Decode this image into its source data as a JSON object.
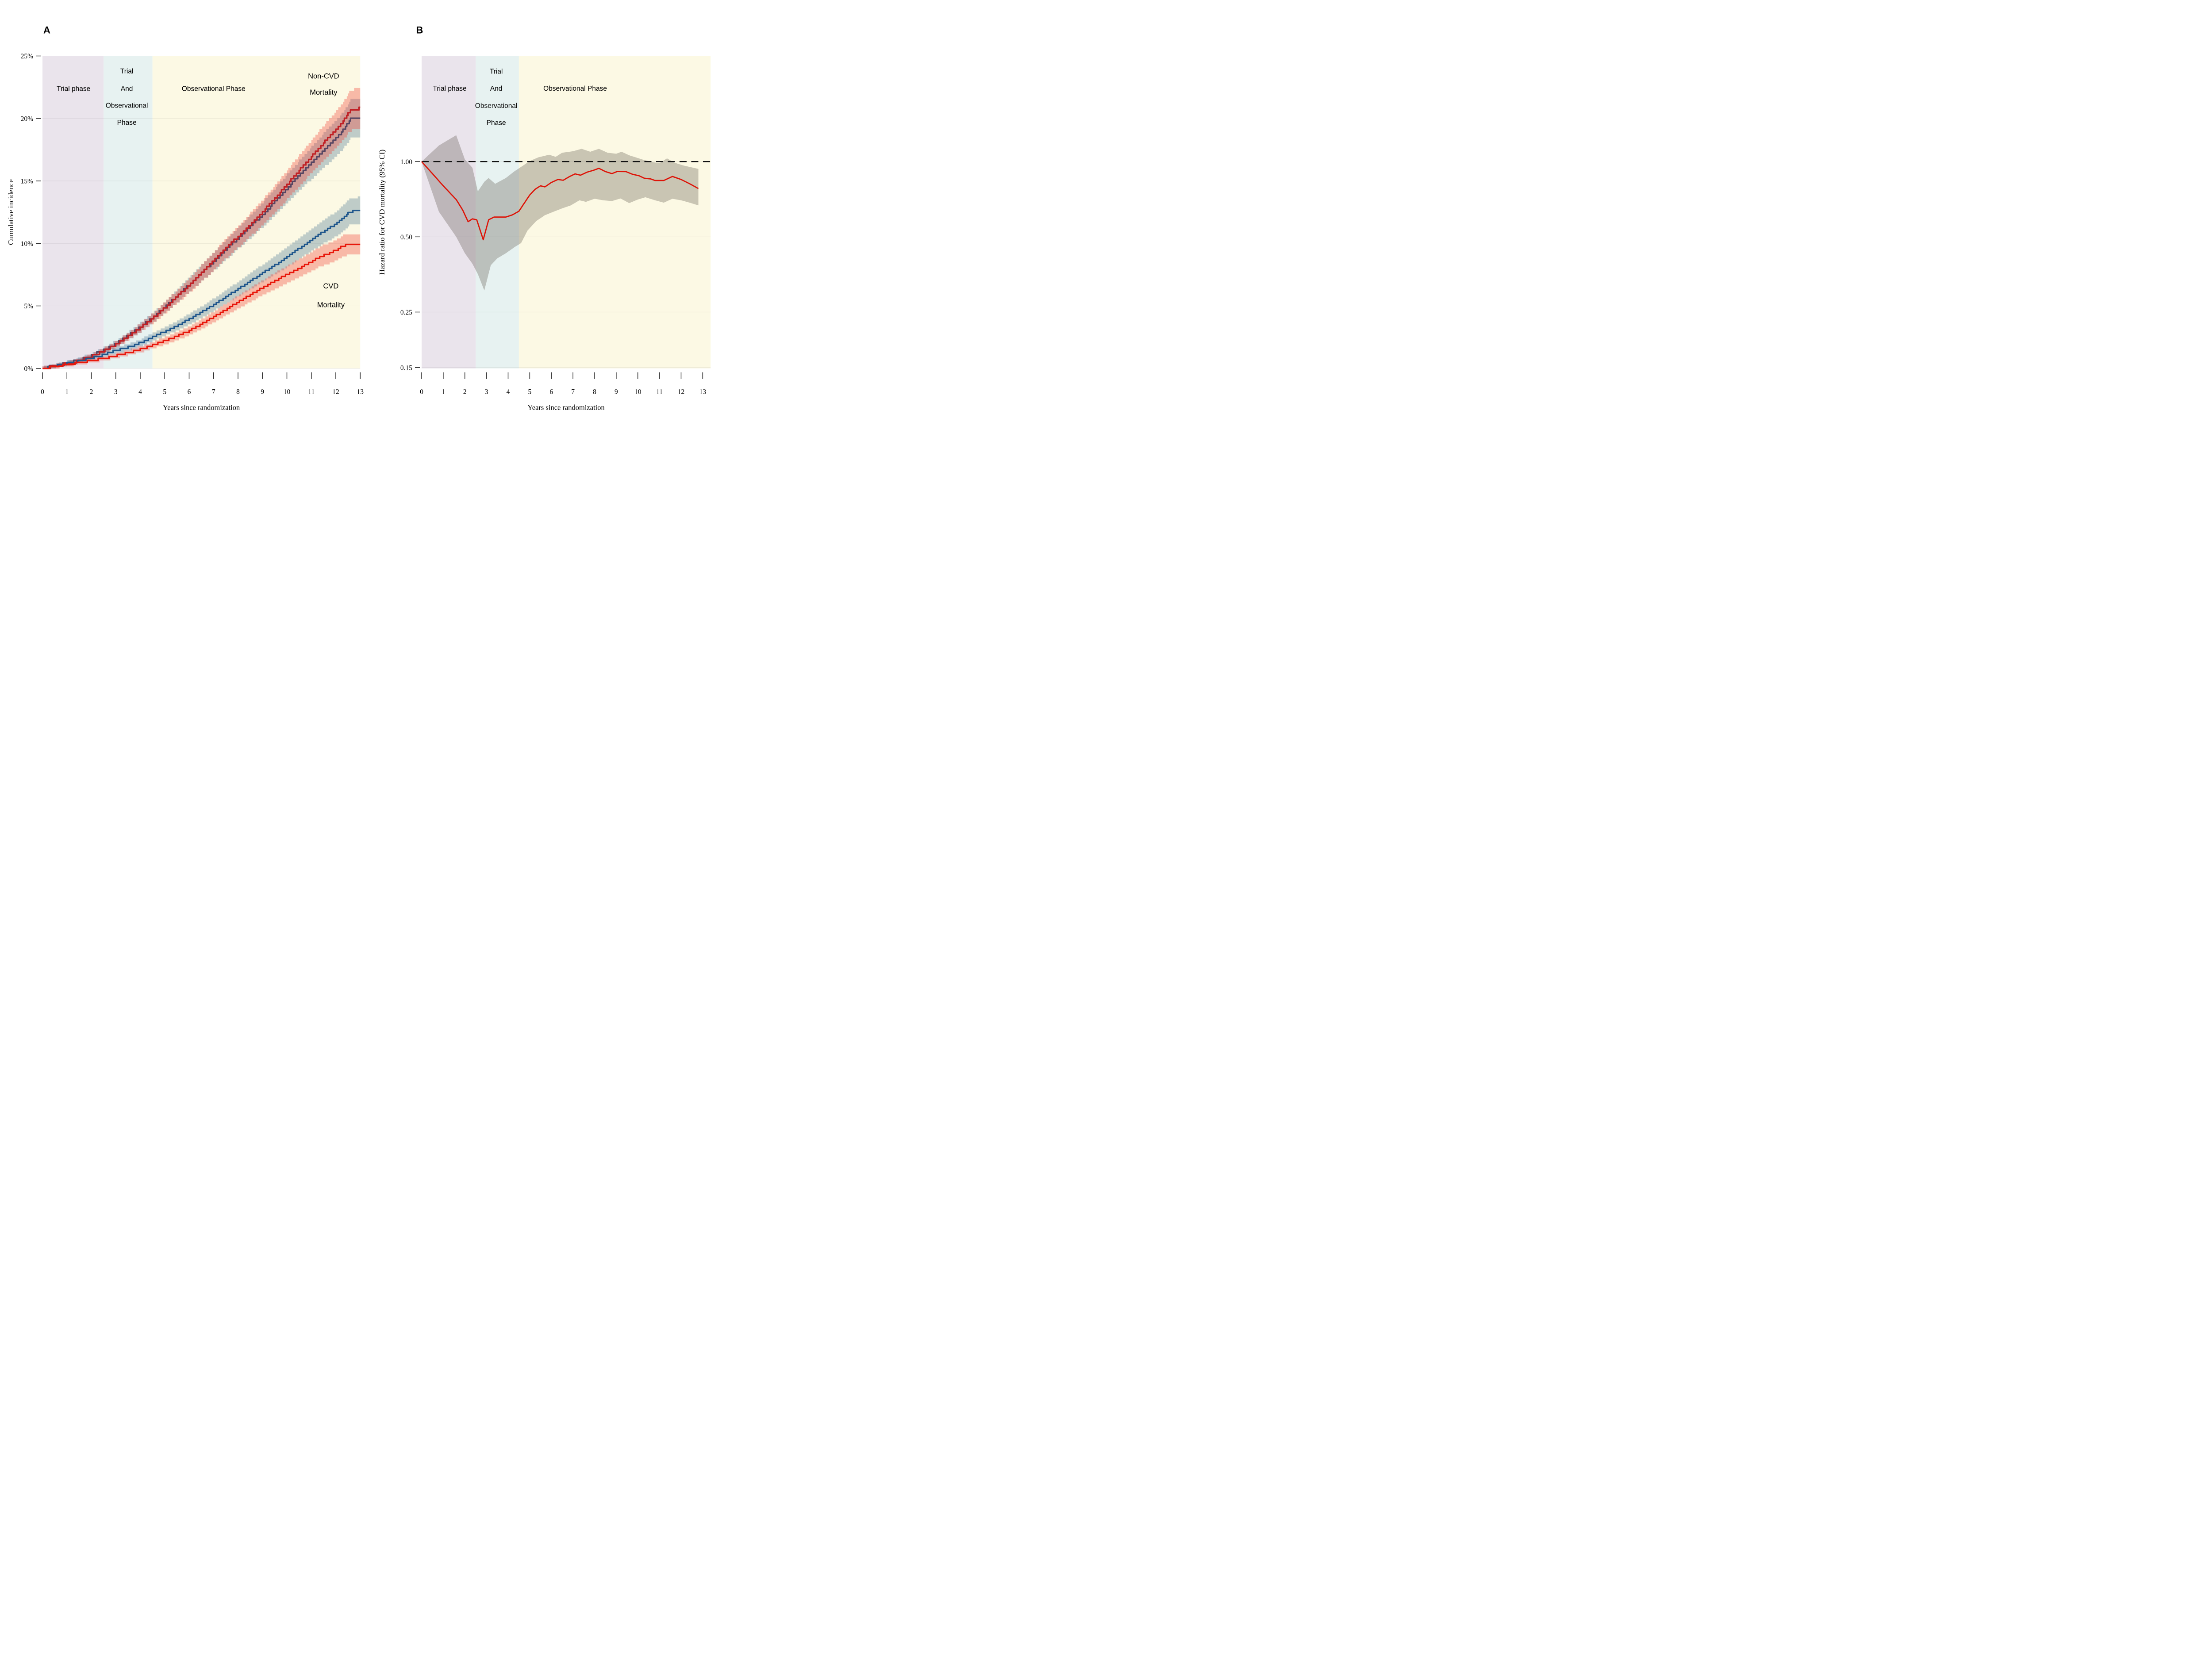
{
  "figure_title": "",
  "colors": {
    "background": "#FFFFFF",
    "phase_trial": "#EAE4EC",
    "phase_trial_obs": "#E7F2F1",
    "phase_observational": "#FCF9E4",
    "ribbon_blue": "rgba(76,119,149,0.35)",
    "ribbon_red": "rgba(241,62,49,0.34)",
    "line_noncvd_dark": "#564562",
    "line_noncvd_red": "#C02025",
    "line_cvd_blue": "#1F568C",
    "line_cvd_red": "#E8170B",
    "hr_line": "#DD1408",
    "hr_band": "rgba(92,88,78,0.32)",
    "reference_line": "#111111",
    "grid": "rgba(60,60,60,0.10)",
    "tick": "#2b2b2b",
    "text": "#000000"
  },
  "chart_data": [
    {
      "id": "panelA",
      "type": "line",
      "panel_label": "A",
      "xlabel": "Years since randomization",
      "ylabel": "Cumulative incidence",
      "xlim": [
        0,
        13
      ],
      "ylim": [
        0,
        25
      ],
      "x_ticks": [
        0,
        1,
        2,
        3,
        4,
        5,
        6,
        7,
        8,
        9,
        10,
        11,
        12,
        13
      ],
      "y_ticks": [
        {
          "v": 0,
          "label": "0%"
        },
        {
          "v": 5,
          "label": "5%"
        },
        {
          "v": 10,
          "label": "10%"
        },
        {
          "v": 15,
          "label": "15%"
        },
        {
          "v": 20,
          "label": "20%"
        },
        {
          "v": 25,
          "label": "25%"
        }
      ],
      "grid": true,
      "legend_position": "none",
      "phases": [
        {
          "name": "trial",
          "x0": 0,
          "x1": 2.5,
          "label": "Trial phase"
        },
        {
          "name": "trial-and-observational",
          "x0": 2.5,
          "x1": 4.5,
          "label": "Trial And Observational Phase"
        },
        {
          "name": "observational",
          "x0": 4.5,
          "x1": null,
          "label": "Observational Phase"
        }
      ],
      "annotations": [
        {
          "text": "Trial phase",
          "x": 1.27,
          "y": 22.2,
          "style": "phase"
        },
        {
          "text": "Trial",
          "x": 3.45,
          "y": 23.6,
          "style": "phase"
        },
        {
          "text": "And",
          "x": 3.45,
          "y": 22.2,
          "style": "phase"
        },
        {
          "text": "Observational",
          "x": 3.45,
          "y": 20.85,
          "style": "phase"
        },
        {
          "text": "Phase",
          "x": 3.45,
          "y": 19.5,
          "style": "phase"
        },
        {
          "text": "Observational Phase",
          "x": 7.0,
          "y": 22.2,
          "style": "phase"
        },
        {
          "text": "Non-CVD",
          "x": 11.5,
          "y": 23.2,
          "style": "outcome"
        },
        {
          "text": "Mortality",
          "x": 11.5,
          "y": 21.9,
          "style": "outcome"
        },
        {
          "text": "CVD",
          "x": 11.8,
          "y": 6.4,
          "style": "outcome"
        },
        {
          "text": "Mortality",
          "x": 11.8,
          "y": 4.9,
          "style": "outcome"
        }
      ],
      "series": [
        {
          "name": "non-cvd-mortality-dark",
          "line_color_key": "line_noncvd_dark",
          "ribbon_color_key": "ribbon_blue",
          "step": 0.22,
          "x": [
            0,
            0.5,
            1,
            1.5,
            2,
            2.5,
            3,
            3.5,
            4,
            4.5,
            5,
            5.5,
            6,
            6.5,
            7,
            7.5,
            8,
            8.5,
            9,
            9.5,
            10,
            10.5,
            11,
            11.5,
            12,
            12.35,
            12.6,
            13
          ],
          "y": [
            0,
            0.2,
            0.42,
            0.68,
            1.02,
            1.45,
            1.98,
            2.6,
            3.3,
            4.05,
            4.9,
            5.8,
            6.7,
            7.62,
            8.55,
            9.5,
            10.42,
            11.35,
            12.3,
            13.32,
            14.4,
            15.42,
            16.45,
            17.45,
            18.4,
            19.2,
            19.95,
            20.0
          ],
          "hw": [
            0.1,
            0.11,
            0.13,
            0.15,
            0.17,
            0.2,
            0.24,
            0.29,
            0.34,
            0.39,
            0.45,
            0.52,
            0.58,
            0.65,
            0.72,
            0.78,
            0.85,
            0.92,
            0.99,
            1.06,
            1.14,
            1.21,
            1.28,
            1.36,
            1.42,
            1.48,
            1.54,
            1.54
          ]
        },
        {
          "name": "non-cvd-mortality-red",
          "line_color_key": "line_noncvd_red",
          "ribbon_color_key": "ribbon_red",
          "step": 0.22,
          "x": [
            0,
            0.5,
            1,
            1.5,
            2,
            2.5,
            3,
            3.5,
            4,
            4.5,
            5,
            5.5,
            6,
            6.5,
            7,
            7.5,
            8,
            8.5,
            9,
            9.5,
            10,
            10.5,
            11,
            11.5,
            12,
            12.3,
            12.55,
            12.75,
            13
          ],
          "y": [
            0,
            0.18,
            0.38,
            0.62,
            0.96,
            1.4,
            1.92,
            2.55,
            3.25,
            4.0,
            4.85,
            5.75,
            6.65,
            7.6,
            8.6,
            9.6,
            10.55,
            11.5,
            12.52,
            13.58,
            14.7,
            15.85,
            16.95,
            18.05,
            19.1,
            19.8,
            20.55,
            20.75,
            20.8
          ],
          "hw": [
            0.1,
            0.11,
            0.13,
            0.14,
            0.17,
            0.2,
            0.24,
            0.28,
            0.33,
            0.39,
            0.45,
            0.51,
            0.58,
            0.65,
            0.72,
            0.79,
            0.86,
            0.93,
            1.0,
            1.08,
            1.16,
            1.24,
            1.32,
            1.4,
            1.48,
            1.53,
            1.58,
            1.6,
            1.6
          ]
        },
        {
          "name": "cvd-mortality-blue",
          "line_color_key": "line_cvd_blue",
          "ribbon_color_key": "ribbon_blue",
          "step": 0.16,
          "x": [
            0,
            0.5,
            1,
            1.5,
            2,
            2.5,
            3,
            3.3,
            3.6,
            4,
            4.5,
            5,
            5.5,
            6,
            6.5,
            7,
            7.5,
            8,
            8.5,
            9,
            9.5,
            10,
            10.5,
            11,
            11.5,
            12,
            12.3,
            12.55,
            12.75,
            13
          ],
          "y": [
            0,
            0.2,
            0.4,
            0.6,
            0.82,
            1.1,
            1.45,
            1.58,
            1.75,
            2.05,
            2.5,
            2.95,
            3.42,
            3.95,
            4.5,
            5.1,
            5.72,
            6.35,
            7.0,
            7.62,
            8.25,
            8.9,
            9.6,
            10.3,
            10.95,
            11.55,
            12.05,
            12.5,
            12.6,
            12.62
          ],
          "hw": [
            0.12,
            0.14,
            0.15,
            0.17,
            0.18,
            0.2,
            0.23,
            0.24,
            0.25,
            0.27,
            0.31,
            0.34,
            0.38,
            0.42,
            0.46,
            0.5,
            0.55,
            0.6,
            0.65,
            0.69,
            0.74,
            0.79,
            0.84,
            0.89,
            0.94,
            0.99,
            1.02,
            1.06,
            1.07,
            1.07
          ]
        },
        {
          "name": "cvd-mortality-red",
          "line_color_key": "line_cvd_red",
          "ribbon_color_key": "ribbon_red",
          "step": 0.16,
          "x": [
            0,
            0.5,
            1,
            1.5,
            2,
            2.5,
            3,
            3.5,
            4,
            4.5,
            5,
            5.4,
            6,
            6.5,
            7,
            7.5,
            8,
            8.5,
            9,
            9.5,
            10,
            10.5,
            11,
            11.4,
            11.7,
            12,
            12.25,
            12.45,
            13
          ],
          "y": [
            0,
            0.15,
            0.3,
            0.46,
            0.62,
            0.8,
            1.02,
            1.26,
            1.52,
            1.85,
            2.2,
            2.5,
            3.0,
            3.55,
            4.12,
            4.72,
            5.3,
            5.9,
            6.45,
            7.0,
            7.52,
            8.02,
            8.55,
            9.0,
            9.2,
            9.45,
            9.75,
            9.9,
            9.9
          ],
          "hw": [
            0.12,
            0.13,
            0.14,
            0.15,
            0.17,
            0.18,
            0.2,
            0.21,
            0.23,
            0.26,
            0.29,
            0.31,
            0.35,
            0.39,
            0.43,
            0.47,
            0.52,
            0.56,
            0.6,
            0.65,
            0.68,
            0.72,
            0.76,
            0.8,
            0.81,
            0.83,
            0.85,
            0.86,
            0.86
          ]
        }
      ]
    },
    {
      "id": "panelB",
      "type": "line",
      "panel_label": "B",
      "xlabel": "Years since randomization",
      "ylabel": "Hazard ratio for CVD mortality (95% CI)",
      "xlim": [
        0,
        13
      ],
      "ylim_log": [
        0.148,
        2.65
      ],
      "x_ticks": [
        0,
        1,
        2,
        3,
        4,
        5,
        6,
        7,
        8,
        9,
        10,
        11,
        12,
        13
      ],
      "y_ticks": [
        {
          "v": 1.0,
          "label": "1.00"
        },
        {
          "v": 0.5,
          "label": "0.50"
        },
        {
          "v": 0.25,
          "label": "0.25"
        },
        {
          "v": 0.15,
          "label": "0.15"
        }
      ],
      "grid": true,
      "legend_position": "none",
      "reference_line": 1.0,
      "phases": [
        {
          "name": "trial",
          "x0": 0,
          "x1": 2.5,
          "label": "Trial phase"
        },
        {
          "name": "trial-and-observational",
          "x0": 2.5,
          "x1": 4.5,
          "label": "Trial And Observational Phase"
        },
        {
          "name": "observational",
          "x0": 4.5,
          "x1": null,
          "label": "Observational Phase"
        }
      ],
      "annotations": [
        {
          "text": "Trial phase",
          "x": 1.3,
          "y": 1.92,
          "style": "phase"
        },
        {
          "text": "Trial",
          "x": 3.45,
          "y": 2.25,
          "style": "phase"
        },
        {
          "text": "And",
          "x": 3.45,
          "y": 1.92,
          "style": "phase"
        },
        {
          "text": "Observational",
          "x": 3.45,
          "y": 1.64,
          "style": "phase"
        },
        {
          "text": "Phase",
          "x": 3.45,
          "y": 1.4,
          "style": "phase"
        },
        {
          "text": "Observational Phase",
          "x": 7.1,
          "y": 1.92,
          "style": "phase"
        }
      ],
      "hr_line": {
        "name": "hazard-ratio-cvd-mortality",
        "x": [
          0,
          0.5,
          1.0,
          1.6,
          1.9,
          2.15,
          2.35,
          2.55,
          2.85,
          3.1,
          3.35,
          3.9,
          4.2,
          4.5,
          4.75,
          5.0,
          5.25,
          5.5,
          5.7,
          6.0,
          6.3,
          6.55,
          6.85,
          7.1,
          7.35,
          7.65,
          7.95,
          8.2,
          8.5,
          8.8,
          9.05,
          9.45,
          9.75,
          10.05,
          10.3,
          10.6,
          10.8,
          11.2,
          11.6,
          12.0,
          12.4,
          12.8
        ],
        "y": [
          1.0,
          0.895,
          0.8,
          0.705,
          0.64,
          0.575,
          0.59,
          0.585,
          0.487,
          0.585,
          0.6,
          0.6,
          0.612,
          0.633,
          0.682,
          0.735,
          0.775,
          0.8,
          0.792,
          0.825,
          0.848,
          0.842,
          0.872,
          0.893,
          0.882,
          0.907,
          0.923,
          0.94,
          0.912,
          0.895,
          0.913,
          0.912,
          0.89,
          0.878,
          0.858,
          0.852,
          0.84,
          0.84,
          0.872,
          0.848,
          0.815,
          0.78
        ]
      },
      "ci_band": {
        "name": "hazard-ratio-95ci",
        "upper_x": [
          0,
          0.8,
          1.6,
          2.0,
          2.35,
          2.6,
          2.9,
          3.1,
          3.4,
          3.9,
          4.3,
          4.7,
          5.0,
          5.4,
          5.9,
          6.2,
          6.5,
          7.0,
          7.4,
          7.8,
          8.2,
          8.6,
          9.0,
          9.25,
          9.6,
          9.9,
          10.2,
          10.7,
          11.0,
          11.35,
          11.7,
          12.1,
          12.8
        ],
        "upper_y": [
          1.0,
          1.16,
          1.275,
          1.02,
          0.945,
          0.76,
          0.83,
          0.86,
          0.815,
          0.86,
          0.915,
          0.965,
          1.005,
          1.04,
          1.065,
          1.045,
          1.085,
          1.1,
          1.125,
          1.095,
          1.125,
          1.085,
          1.075,
          1.095,
          1.06,
          1.04,
          1.02,
          0.995,
          0.985,
          1.03,
          0.99,
          0.965,
          0.935
        ],
        "lower_x": [
          0,
          0.8,
          1.6,
          2.0,
          2.35,
          2.6,
          2.9,
          3.2,
          3.5,
          3.9,
          4.3,
          4.6,
          4.9,
          5.3,
          5.7,
          6.1,
          6.5,
          6.9,
          7.3,
          7.6,
          8.0,
          8.4,
          8.8,
          9.2,
          9.6,
          10.0,
          10.35,
          10.8,
          11.2,
          11.6,
          12.0,
          12.4,
          12.8
        ],
        "lower_y": [
          1.0,
          0.63,
          0.5,
          0.43,
          0.39,
          0.355,
          0.305,
          0.385,
          0.41,
          0.43,
          0.455,
          0.472,
          0.53,
          0.578,
          0.61,
          0.63,
          0.65,
          0.668,
          0.7,
          0.69,
          0.71,
          0.7,
          0.695,
          0.712,
          0.682,
          0.705,
          0.72,
          0.7,
          0.685,
          0.71,
          0.7,
          0.685,
          0.668
        ]
      }
    }
  ]
}
